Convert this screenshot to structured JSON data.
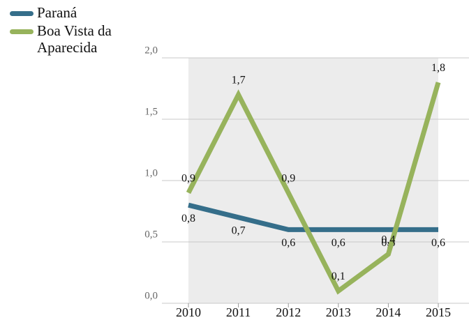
{
  "chart_data": {
    "type": "line",
    "categories": [
      "2010",
      "2011",
      "2012",
      "2013",
      "2014",
      "2015"
    ],
    "series": [
      {
        "name": "Paraná",
        "color": "#356e8a",
        "values": [
          0.8,
          0.7,
          0.6,
          0.6,
          0.6,
          0.6
        ],
        "value_labels": [
          "0,8",
          "0,7",
          "0,6",
          "0,6",
          "0,6",
          "0,6"
        ]
      },
      {
        "name": "Boa Vista da Aparecida",
        "color": "#97b35c",
        "values": [
          0.9,
          1.7,
          0.9,
          0.1,
          0.4,
          1.8
        ],
        "value_labels": [
          "0,9",
          "1,7",
          "0,9",
          "0,1",
          "0,4",
          "1,8"
        ]
      }
    ],
    "ylim": [
      0,
      2
    ],
    "yticks": [
      {
        "value": 0,
        "label": "0,0"
      },
      {
        "value": 0.5,
        "label": "0,5"
      },
      {
        "value": 1,
        "label": "1,0"
      },
      {
        "value": 1.5,
        "label": "1,5"
      },
      {
        "value": 2,
        "label": "2,0"
      }
    ],
    "grid": true,
    "legend": "top-left"
  }
}
